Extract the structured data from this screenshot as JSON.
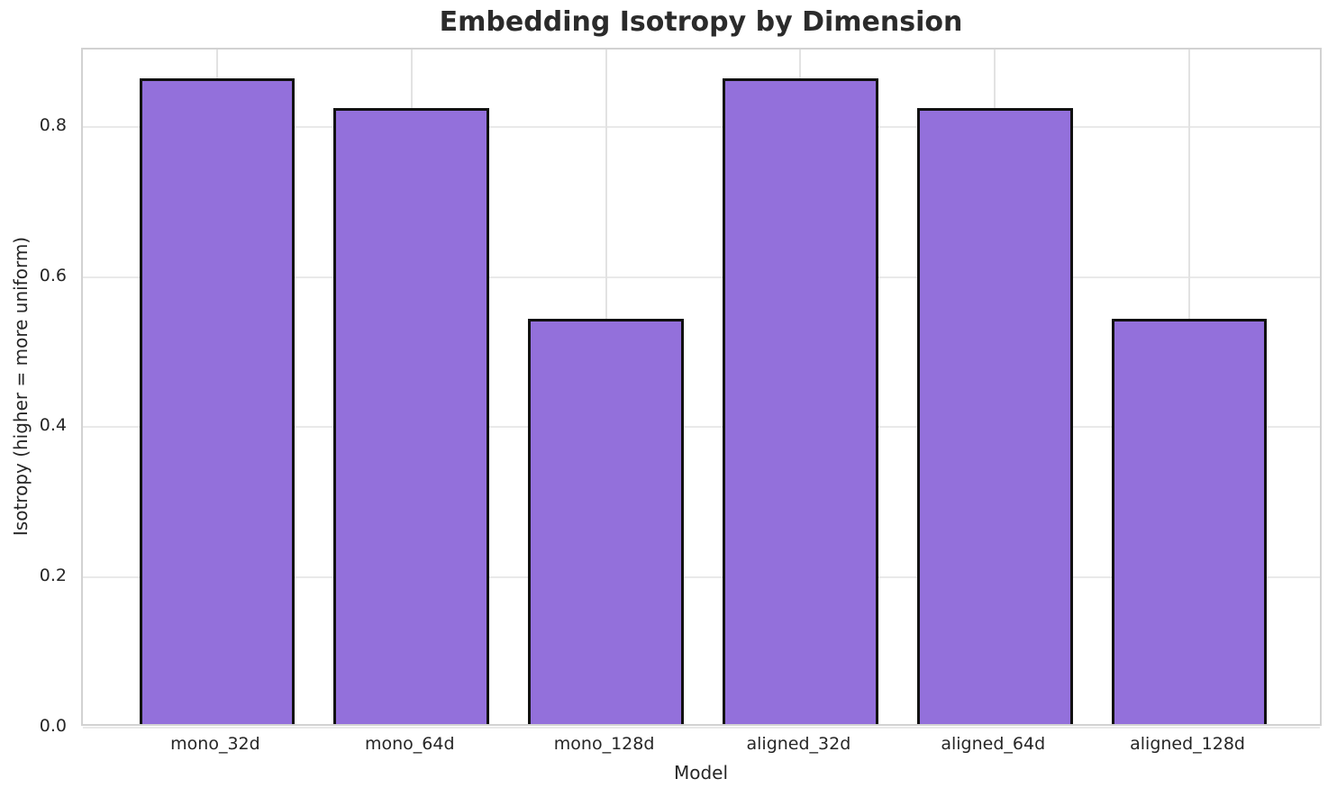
{
  "chart_data": {
    "type": "bar",
    "title": "Embedding Isotropy by Dimension",
    "xlabel": "Model",
    "ylabel": "Isotropy (higher = more uniform)",
    "categories": [
      "mono_32d",
      "mono_64d",
      "mono_128d",
      "aligned_32d",
      "aligned_64d",
      "aligned_128d"
    ],
    "values": [
      0.86,
      0.82,
      0.54,
      0.86,
      0.82,
      0.54
    ],
    "ytick_labels": [
      "0.0",
      "0.2",
      "0.4",
      "0.6",
      "0.8"
    ],
    "yticks": [
      0.0,
      0.2,
      0.4,
      0.6,
      0.8
    ],
    "ylim": [
      0,
      0.903
    ],
    "xlim": [
      -0.69,
      5.69
    ],
    "bar_width": 0.8,
    "grid": true,
    "legend": "none",
    "colors": {
      "bar_fill": "#9370DB",
      "bar_edge": "#111111",
      "grid": "#e7e7e7",
      "spine": "#d2d2d2",
      "text": "#262626",
      "background": "#ffffff"
    }
  }
}
